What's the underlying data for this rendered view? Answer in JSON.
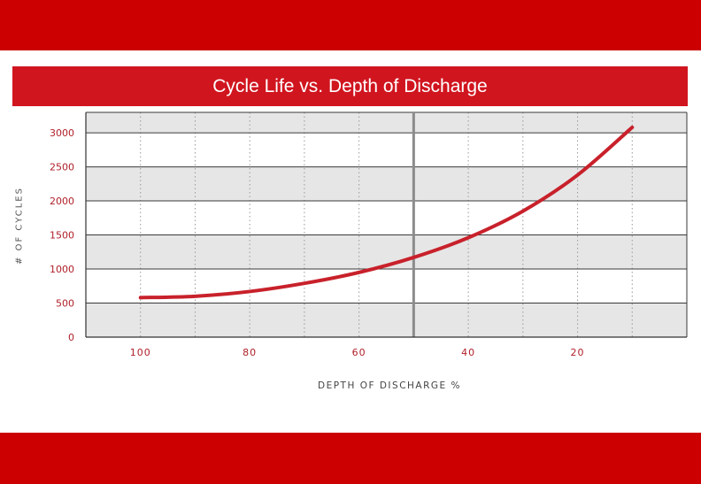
{
  "title": "Cycle Life vs. Depth of Discharge",
  "colors": {
    "band": "#cc0000",
    "title_bg": "#d0151f",
    "curve": "#c8212b",
    "tick_text": "#b0202a"
  },
  "chart_data": {
    "type": "line",
    "title": "Cycle Life vs. Depth of Discharge",
    "xlabel": "DEPTH OF DISCHARGE %",
    "ylabel": "# OF CYCLES",
    "x_reversed": true,
    "xlim": [
      110,
      0
    ],
    "ylim": [
      0,
      3300
    ],
    "xticks": [
      100,
      80,
      60,
      40,
      20
    ],
    "yticks": [
      0,
      500,
      1000,
      1500,
      2000,
      2500,
      3000
    ],
    "reference_line_x": 50,
    "grid": true,
    "series": [
      {
        "x": [
          100,
          90,
          80,
          70,
          60,
          50,
          40,
          30,
          20,
          10
        ],
        "y": [
          580,
          600,
          670,
          790,
          950,
          1170,
          1460,
          1850,
          2380,
          3080
        ]
      }
    ]
  }
}
